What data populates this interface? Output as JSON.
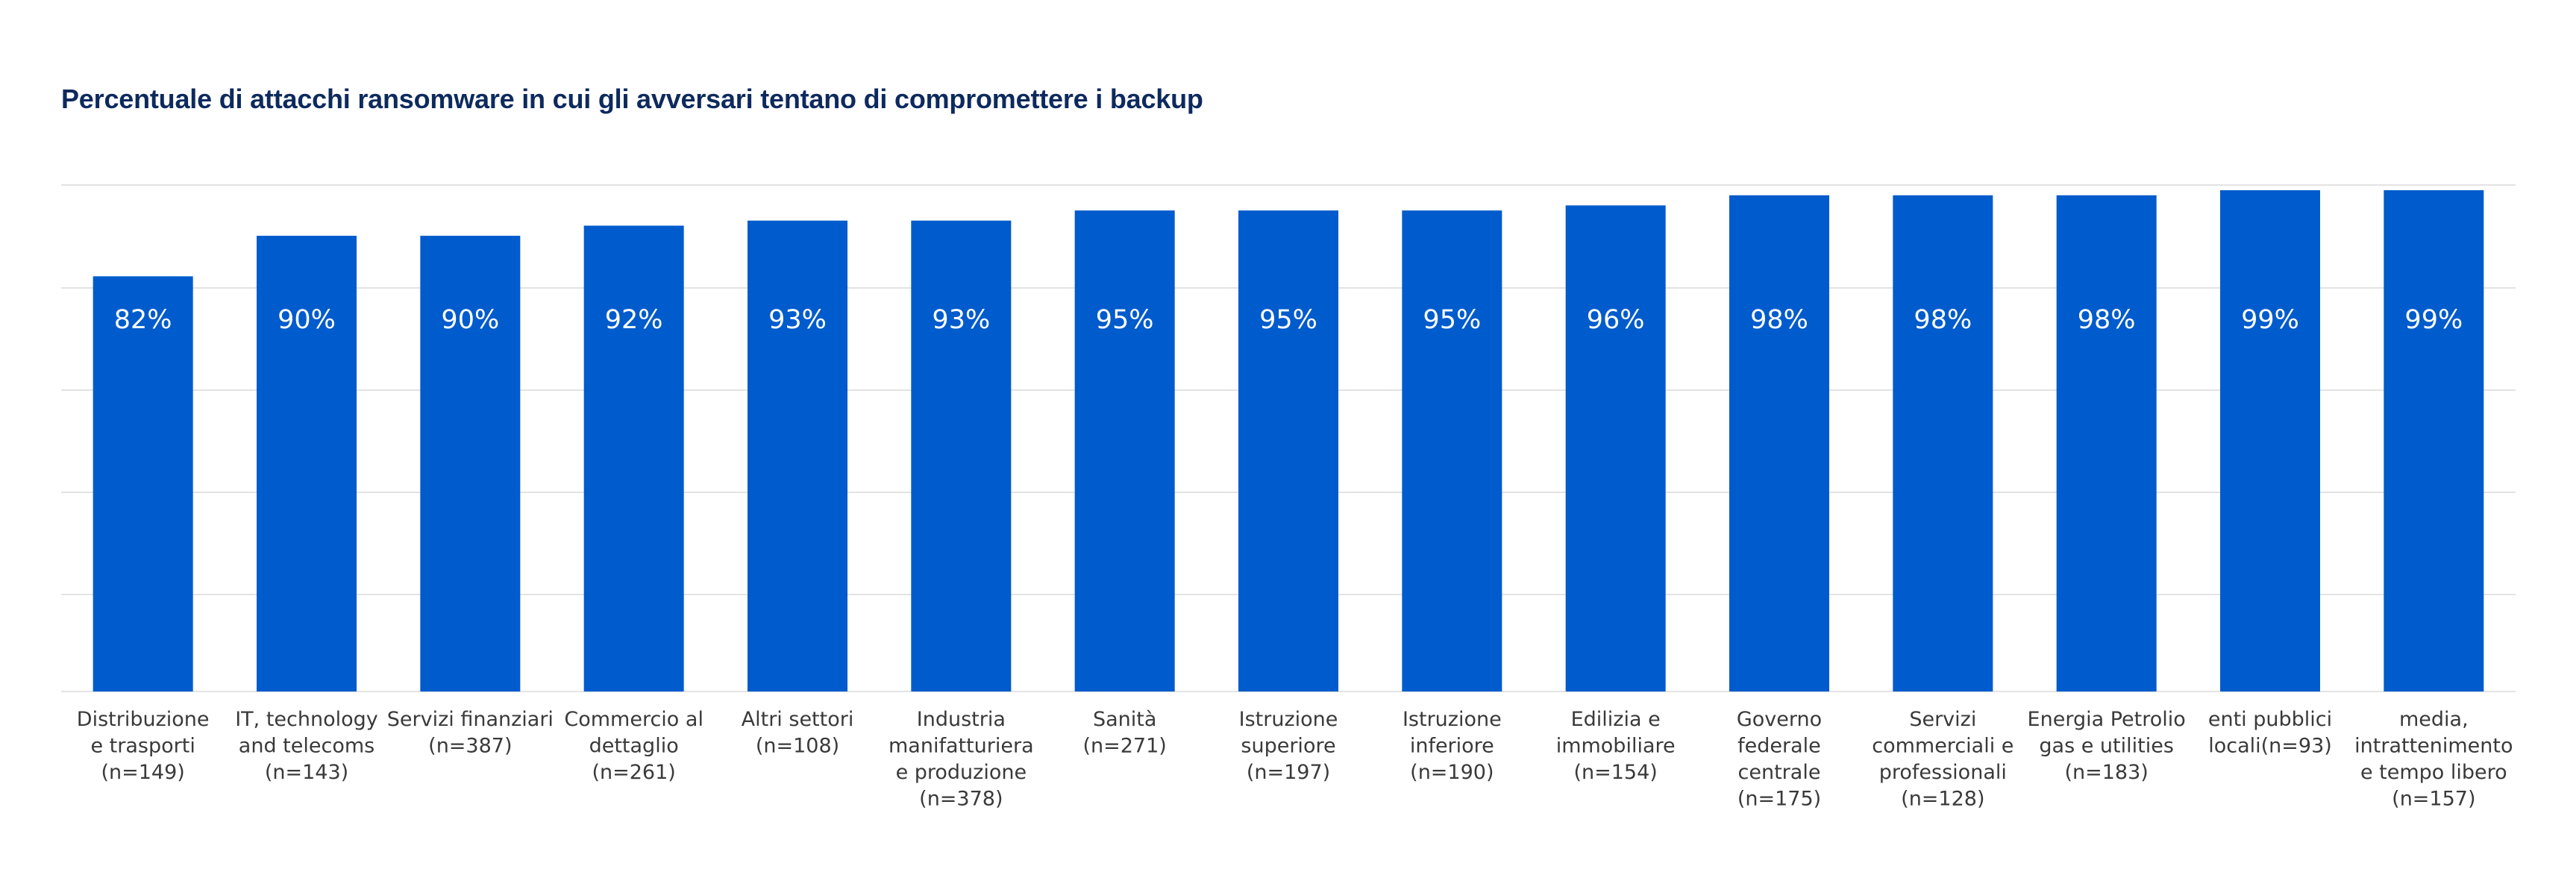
{
  "chart_data": {
    "type": "bar",
    "title": "Percentuale di attacchi ransomware in cui gli avversari tentano di compromettere i backup",
    "xlabel": "",
    "ylabel": "",
    "ylim": [
      0,
      100
    ],
    "grid": true,
    "bar_color": "#005bcc",
    "categories": [
      [
        "Distribuzione",
        "e trasporti",
        "(n=149)"
      ],
      [
        "IT, technology",
        "and telecoms",
        "(n=143)"
      ],
      [
        "Servizi finanziari",
        "(n=387)"
      ],
      [
        "Commercio al",
        "dettaglio",
        "(n=261)"
      ],
      [
        "Altri settori",
        "(n=108)"
      ],
      [
        "Industria",
        "manifatturiera",
        "e produzione",
        "(n=378)"
      ],
      [
        "Sanità",
        "(n=271)"
      ],
      [
        "Istruzione",
        "superiore",
        "(n=197)"
      ],
      [
        "Istruzione",
        "inferiore",
        "(n=190)"
      ],
      [
        "Edilizia e",
        "immobiliare",
        "(n=154)"
      ],
      [
        "Governo",
        "federale",
        "centrale",
        "(n=175)"
      ],
      [
        "Servizi",
        "commerciali e",
        "professionali",
        "(n=128)"
      ],
      [
        "Energia Petrolio",
        "gas e utilities",
        "(n=183)"
      ],
      [
        "enti pubblici",
        "locali(n=93)"
      ],
      [
        "media,",
        "intrattenimento",
        "e tempo libero",
        "(n=157)"
      ]
    ],
    "values": [
      82,
      90,
      90,
      92,
      93,
      93,
      95,
      95,
      95,
      96,
      98,
      98,
      98,
      99,
      99
    ],
    "value_labels": [
      "82%",
      "90%",
      "90%",
      "92%",
      "93%",
      "93%",
      "95%",
      "95%",
      "95%",
      "96%",
      "98%",
      "98%",
      "98%",
      "99%",
      "99%"
    ]
  }
}
